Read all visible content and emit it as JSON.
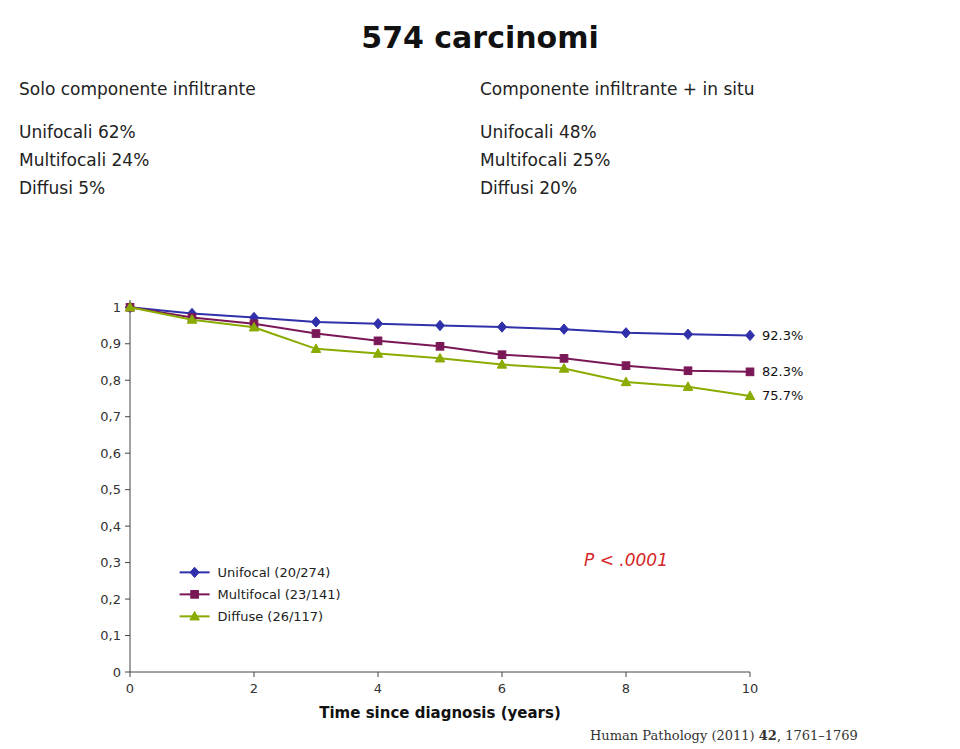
{
  "chart_data": {
    "type": "line",
    "title": "574 carcinomi",
    "subtitles": [
      "Solo componente infiltrante",
      "Componente infiltrante + in situ"
    ],
    "text_blocks": [
      [
        "Unifocali  62%",
        "Multifocali 24%",
        "Diffusi 5%"
      ],
      [
        "Unifocali  48%",
        "Multifocali 25%",
        "Diffusi 20%"
      ]
    ],
    "x_label": "Time since diagnosis (years)",
    "annotation": "P < .0001",
    "source": [
      "Human Pathology (2011) ",
      "42",
      ", 1761–1769"
    ],
    "x": [
      0,
      1,
      2,
      3,
      4,
      5,
      6,
      7,
      8,
      9,
      10
    ],
    "series": [
      {
        "name": "Unifocal (20/274)",
        "color": "#3030aa",
        "marker": "diamond",
        "values": [
          1.0,
          0.983,
          0.972,
          0.96,
          0.955,
          0.95,
          0.946,
          0.94,
          0.93,
          0.926,
          0.923
        ],
        "end_label": "92.3%"
      },
      {
        "name": "Multifocal (23/141)",
        "color": "#7a1857",
        "marker": "square",
        "values": [
          1.0,
          0.972,
          0.955,
          0.928,
          0.908,
          0.893,
          0.87,
          0.86,
          0.84,
          0.826,
          0.823
        ],
        "end_label": "82.3%"
      },
      {
        "name": "Diffuse (26/117)",
        "color": "#8aab00",
        "marker": "triangle-up",
        "values": [
          1.0,
          0.966,
          0.945,
          0.886,
          0.873,
          0.86,
          0.843,
          0.832,
          0.795,
          0.782,
          0.757
        ],
        "end_label": "75.7%"
      }
    ],
    "xlim": [
      0,
      10
    ],
    "ylim": [
      0,
      1.02
    ],
    "xticks": [
      0,
      2,
      4,
      6,
      8,
      10
    ],
    "yticks": [
      0,
      {
        "value": 0.1,
        "label": "0,1"
      },
      {
        "value": 0.2,
        "label": "0,2"
      },
      {
        "value": 0.3,
        "label": "0,3"
      },
      {
        "value": 0.4,
        "label": "0,4"
      },
      {
        "value": 0.5,
        "label": "0,5"
      },
      {
        "value": 0.6,
        "label": "0,6"
      },
      {
        "value": 0.7,
        "label": "0,7"
      },
      {
        "value": 0.8,
        "label": "0,8"
      },
      {
        "value": 0.9,
        "label": "0,9"
      },
      1
    ],
    "legend": "lower left",
    "grid": false
  }
}
